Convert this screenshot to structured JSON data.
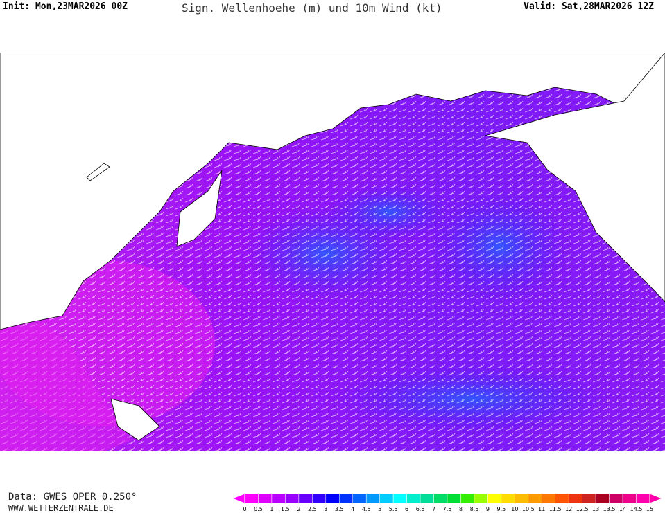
{
  "header": {
    "init": "Init: Mon,23MAR2026 00Z",
    "title": "Sign. Wellenhoehe (m) und 10m Wind (kt)",
    "valid": "Valid: Sat,28MAR2026 12Z"
  },
  "footer": {
    "data": "Data: GWES OPER 0.250°",
    "website": "WWW.WETTERZENTRALE.DE"
  },
  "legend": {
    "labels": [
      0,
      0.5,
      1,
      1.5,
      2,
      2.5,
      3,
      3.5,
      4,
      4.5,
      5,
      5.5,
      6,
      6.5,
      7,
      7.5,
      8,
      8.5,
      9,
      9.5,
      10,
      10.5,
      11,
      11.5,
      12,
      12.5,
      13,
      13.5,
      14,
      14.5,
      15
    ],
    "colors": [
      "#ff00ff",
      "#dd00ff",
      "#bb00ff",
      "#9900ff",
      "#6600ff",
      "#3300ff",
      "#0000ff",
      "#0033ff",
      "#0066ff",
      "#0099ff",
      "#00ccff",
      "#00ffff",
      "#00eecc",
      "#00dd99",
      "#00dd66",
      "#00dd33",
      "#33ee00",
      "#99ff00",
      "#ffff00",
      "#ffdd00",
      "#ffbb00",
      "#ff9900",
      "#ff7700",
      "#ff5500",
      "#ee3311",
      "#cc2222",
      "#aa0022",
      "#cc0066",
      "#ee0088",
      "#ff00aa"
    ]
  }
}
